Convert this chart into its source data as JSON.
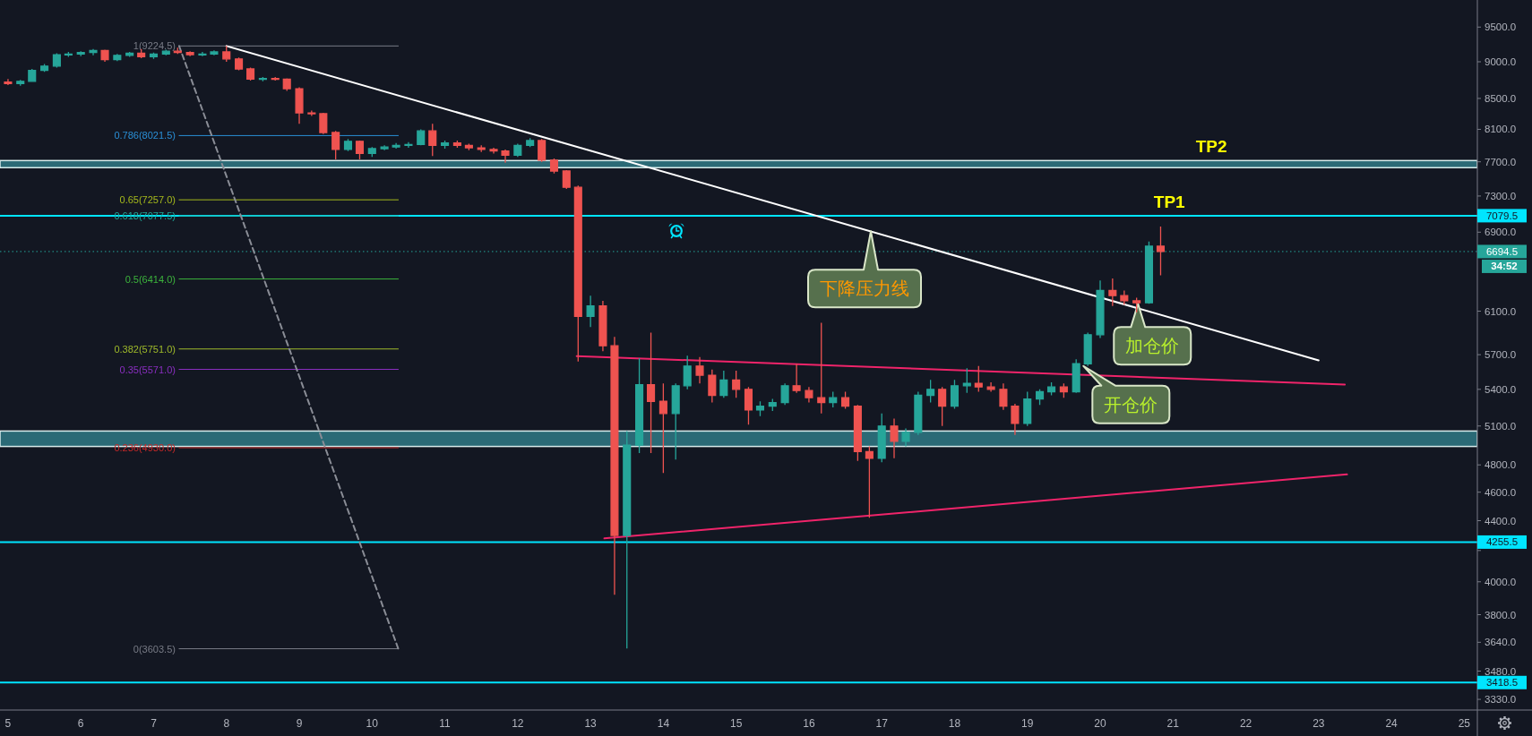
{
  "chart_data": {
    "type": "candlestick",
    "log": "y",
    "xlim": [
      4.89,
      25.18
    ],
    "xticks": [
      5,
      6,
      7,
      8,
      9,
      10,
      11,
      12,
      13,
      14,
      15,
      16,
      17,
      18,
      19,
      20,
      21,
      22,
      23,
      24,
      25
    ],
    "ylim": [
      3275,
      9910
    ],
    "yticks": [
      {
        "value": 9500,
        "label": "9500.0"
      },
      {
        "value": 9000,
        "label": "9000.0"
      },
      {
        "value": 8500,
        "label": "8500.0"
      },
      {
        "value": 8100,
        "label": "8100.0"
      },
      {
        "value": 7700,
        "label": "7700.0"
      },
      {
        "value": 7300,
        "label": "7300.0"
      },
      {
        "value": 6900,
        "label": "6900.0"
      },
      {
        "value": 6100,
        "label": "6100.0"
      },
      {
        "value": 5700,
        "label": "5700.0"
      },
      {
        "value": 5400,
        "label": "5400.0"
      },
      {
        "value": 5100,
        "label": "5100.0"
      },
      {
        "value": 4800,
        "label": "4800.0"
      },
      {
        "value": 4600,
        "label": "4600.0"
      },
      {
        "value": 4400,
        "label": "4400.0"
      },
      {
        "value": 4200,
        "label": null
      },
      {
        "value": 4000,
        "label": "4000.0"
      },
      {
        "value": 3800,
        "label": "3800.0"
      },
      {
        "value": 3640,
        "label": "3640.0"
      },
      {
        "value": 3480,
        "label": "3480.0"
      },
      {
        "value": 3330,
        "label": "3330.0"
      }
    ],
    "x": [
      5,
      5.17,
      5.33,
      5.5,
      5.67,
      5.83,
      6,
      6.17,
      6.33,
      6.5,
      6.67,
      6.83,
      7,
      7.17,
      7.33,
      7.5,
      7.67,
      7.83,
      8,
      8.17,
      8.33,
      8.5,
      8.67,
      8.83,
      9,
      9.17,
      9.33,
      9.5,
      9.67,
      9.83,
      10,
      10.17,
      10.33,
      10.5,
      10.67,
      10.83,
      11,
      11.17,
      11.33,
      11.5,
      11.67,
      11.83,
      12,
      12.17,
      12.33,
      12.5,
      12.67,
      12.83,
      13,
      13.17,
      13.33,
      13.5,
      13.67,
      13.83,
      14,
      14.17,
      14.33,
      14.5,
      14.67,
      14.83,
      15,
      15.17,
      15.33,
      15.5,
      15.67,
      15.83,
      16,
      16.17,
      16.33,
      16.5,
      16.67,
      16.83,
      17,
      17.17,
      17.33,
      17.5,
      17.67,
      17.83,
      18,
      18.17,
      18.33,
      18.5,
      18.67,
      18.83,
      19,
      19.17,
      19.33,
      19.5,
      19.67,
      19.83,
      20,
      20.17,
      20.33,
      20.5,
      20.67,
      20.83
    ],
    "ohlc": [
      [
        8720,
        8760,
        8680,
        8700
      ],
      [
        8700,
        8750,
        8670,
        8730
      ],
      [
        8730,
        8900,
        8720,
        8880
      ],
      [
        8880,
        8970,
        8860,
        8940
      ],
      [
        8940,
        9120,
        8920,
        9100
      ],
      [
        9100,
        9140,
        9070,
        9110
      ],
      [
        9110,
        9150,
        9080,
        9130
      ],
      [
        9130,
        9180,
        9090,
        9160
      ],
      [
        9160,
        9170,
        9000,
        9030
      ],
      [
        9030,
        9110,
        9010,
        9090
      ],
      [
        9090,
        9140,
        9070,
        9120
      ],
      [
        9120,
        9180,
        9050,
        9070
      ],
      [
        9070,
        9130,
        9040,
        9110
      ],
      [
        9110,
        9170,
        9090,
        9150
      ],
      [
        9150,
        9200,
        9110,
        9130
      ],
      [
        9130,
        9150,
        9080,
        9100
      ],
      [
        9100,
        9140,
        9080,
        9110
      ],
      [
        9110,
        9160,
        9090,
        9140
      ],
      [
        9140,
        9224.5,
        9000,
        9040
      ],
      [
        9040,
        9060,
        8880,
        8900
      ],
      [
        8900,
        8920,
        8740,
        8760
      ],
      [
        8760,
        8790,
        8730,
        8770
      ],
      [
        8770,
        8790,
        8740,
        8760
      ],
      [
        8760,
        8770,
        8600,
        8630
      ],
      [
        8630,
        8650,
        8170,
        8310
      ],
      [
        8310,
        8340,
        8270,
        8300
      ],
      [
        8300,
        8310,
        8040,
        8060
      ],
      [
        8060,
        8080,
        7730,
        7850
      ],
      [
        7850,
        7980,
        7830,
        7950
      ],
      [
        7950,
        7960,
        7730,
        7800
      ],
      [
        7800,
        7880,
        7760,
        7860
      ],
      [
        7860,
        7900,
        7840,
        7880
      ],
      [
        7880,
        7930,
        7860,
        7900
      ],
      [
        7900,
        7940,
        7870,
        7910
      ],
      [
        7910,
        8100,
        7900,
        8080
      ],
      [
        8080,
        8170,
        7770,
        7900
      ],
      [
        7900,
        7960,
        7860,
        7930
      ],
      [
        7930,
        7960,
        7870,
        7900
      ],
      [
        7900,
        7920,
        7840,
        7870
      ],
      [
        7870,
        7900,
        7820,
        7850
      ],
      [
        7850,
        7870,
        7800,
        7830
      ],
      [
        7830,
        7850,
        7690,
        7780
      ],
      [
        7780,
        7920,
        7760,
        7900
      ],
      [
        7900,
        7990,
        7880,
        7960
      ],
      [
        7960,
        7980,
        7700,
        7720
      ],
      [
        7720,
        7740,
        7560,
        7590
      ],
      [
        7590,
        7600,
        7380,
        7400
      ],
      [
        7400,
        7420,
        5640,
        6050
      ],
      [
        6050,
        6250,
        5950,
        6150
      ],
      [
        6150,
        6200,
        5730,
        5780
      ],
      [
        5780,
        5860,
        3920,
        4300
      ],
      [
        4300,
        5060,
        3605,
        4950
      ],
      [
        4950,
        5670,
        4890,
        5440
      ],
      [
        5440,
        5900,
        4890,
        5300
      ],
      [
        5300,
        5450,
        4740,
        5200
      ],
      [
        5200,
        5450,
        4840,
        5430
      ],
      [
        5430,
        5690,
        5400,
        5600
      ],
      [
        5600,
        5680,
        5450,
        5520
      ],
      [
        5520,
        5570,
        5290,
        5350
      ],
      [
        5350,
        5560,
        5330,
        5480
      ],
      [
        5480,
        5560,
        5330,
        5400
      ],
      [
        5400,
        5420,
        5110,
        5230
      ],
      [
        5230,
        5300,
        5180,
        5260
      ],
      [
        5260,
        5320,
        5220,
        5290
      ],
      [
        5290,
        5450,
        5270,
        5430
      ],
      [
        5430,
        5620,
        5370,
        5390
      ],
      [
        5390,
        5420,
        5290,
        5330
      ],
      [
        5330,
        5990,
        5200,
        5290
      ],
      [
        5290,
        5380,
        5250,
        5330
      ],
      [
        5330,
        5380,
        5240,
        5260
      ],
      [
        5260,
        5270,
        4830,
        4900
      ],
      [
        4900,
        4940,
        4420,
        4850
      ],
      [
        4850,
        5200,
        4820,
        5100
      ],
      [
        5100,
        5160,
        4850,
        4980
      ],
      [
        4980,
        5080,
        4940,
        5050
      ],
      [
        5050,
        5380,
        5030,
        5350
      ],
      [
        5350,
        5480,
        5290,
        5400
      ],
      [
        5400,
        5420,
        5100,
        5260
      ],
      [
        5260,
        5480,
        5240,
        5430
      ],
      [
        5430,
        5580,
        5370,
        5450
      ],
      [
        5450,
        5600,
        5380,
        5420
      ],
      [
        5420,
        5460,
        5380,
        5400
      ],
      [
        5400,
        5450,
        5230,
        5260
      ],
      [
        5260,
        5280,
        5030,
        5120
      ],
      [
        5120,
        5380,
        5100,
        5320
      ],
      [
        5320,
        5400,
        5270,
        5380
      ],
      [
        5380,
        5460,
        5350,
        5420
      ],
      [
        5420,
        5450,
        5330,
        5380
      ],
      [
        5380,
        5660,
        5370,
        5620
      ],
      [
        5620,
        5900,
        5600,
        5880
      ],
      [
        5880,
        6400,
        5850,
        6300
      ],
      [
        6300,
        6420,
        6150,
        6250
      ],
      [
        6250,
        6300,
        6160,
        6200
      ],
      [
        6200,
        6230,
        6090,
        6180
      ],
      [
        6180,
        6800,
        6170,
        6750
      ],
      [
        6750,
        6960,
        6450,
        6694.5
      ]
    ],
    "series": [
      {
        "type": "line",
        "name": "1(9224.5)",
        "color": "#787b86",
        "x": [
          7.35,
          10.36
        ],
        "values": [
          9224.5,
          9224.5
        ]
      },
      {
        "type": "line",
        "name": "0.786(8021.5)",
        "color": "#2a8fd6",
        "x": [
          7.35,
          10.36
        ],
        "values": [
          8021.5,
          8021.5
        ]
      },
      {
        "type": "line",
        "name": "0.65(7257.0)",
        "color": "#a5b91c",
        "x": [
          7.35,
          10.36
        ],
        "values": [
          7257.0,
          7257.0
        ]
      },
      {
        "type": "line",
        "name": "0.618(7077.5)",
        "color": "#1fa99a",
        "x": [
          7.35,
          10.36
        ],
        "values": [
          7077.5,
          7077.5
        ]
      },
      {
        "type": "line",
        "name": "0.5(6414.0)",
        "color": "#3cb43c",
        "x": [
          7.35,
          10.36
        ],
        "values": [
          6414.0,
          6414.0
        ]
      },
      {
        "type": "line",
        "name": "0.382(5751.0)",
        "color": "#9fba2a",
        "x": [
          7.35,
          10.36
        ],
        "values": [
          5751.0,
          5751.0
        ]
      },
      {
        "type": "line",
        "name": "0.35(5571.0)",
        "color": "#8a2ec0",
        "x": [
          7.35,
          10.36
        ],
        "values": [
          5571.0,
          5571.0
        ]
      },
      {
        "type": "line",
        "name": "0.236(4930.0)",
        "color": "#c62828",
        "x": [
          7.35,
          10.36
        ],
        "values": [
          4930.0,
          4930.0
        ]
      },
      {
        "type": "line",
        "name": "0(3603.5)",
        "color": "#787b86",
        "x": [
          7.35,
          10.36
        ],
        "values": [
          3603.5,
          3603.5
        ]
      },
      {
        "type": "line",
        "color": "#8a8d96",
        "line_style": "dashed",
        "x": [
          7.35,
          10.36
        ],
        "values": [
          9224.5,
          3603.5
        ]
      },
      {
        "type": "line",
        "color": "#ffffff",
        "x": [
          8.0,
          23.0
        ],
        "values": [
          9224.5,
          5650
        ]
      },
      {
        "type": "line",
        "color": "#f0246a",
        "x": [
          12.81,
          23.36
        ],
        "values": [
          5687,
          5441
        ]
      },
      {
        "type": "line",
        "color": "#f0246a",
        "x": [
          13.19,
          23.39
        ],
        "values": [
          4280,
          4729
        ]
      }
    ],
    "ref_lines": [
      {
        "axis": "y",
        "value": 7079.5,
        "label": "7079.5",
        "color": "#00e5ff"
      },
      {
        "axis": "y",
        "value": 4255.5,
        "label": "4255.5",
        "color": "#00e5ff"
      },
      {
        "axis": "y",
        "value": 3418.5,
        "label": "3418.5",
        "color": "#00e5ff"
      },
      {
        "axis": "y",
        "value": 6694.5,
        "label": "6694.5",
        "color": "#26a69a",
        "line_style": "dotted"
      }
    ],
    "bands": [
      {
        "axis": "y",
        "from": 7630,
        "to": 7715,
        "label": "TP2",
        "color": "#2f7380"
      },
      {
        "axis": "y",
        "from": 4940,
        "to": 5060,
        "color": "#2f7380"
      }
    ],
    "annotations": [
      {
        "text": "TP1",
        "x": 20.95,
        "y": 7079.5
      },
      {
        "text": "下降压力线",
        "x": 16.85,
        "y": 6910
      },
      {
        "text": "加仓价",
        "x": 20.52,
        "y": 6170
      },
      {
        "text": "开仓价",
        "x": 19.77,
        "y": 5600
      },
      "34:52"
    ]
  }
}
